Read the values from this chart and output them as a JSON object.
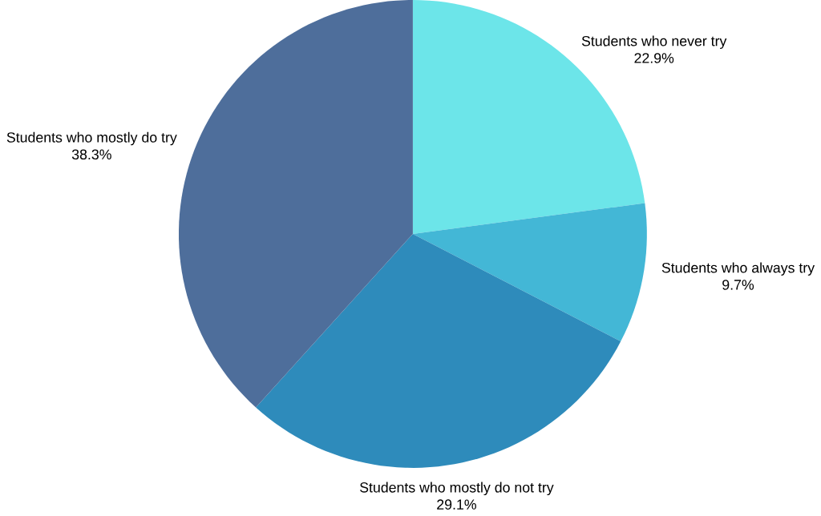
{
  "chart_data": {
    "type": "pie",
    "categories": [
      "Students who never try",
      "Students who always try",
      "Students who mostly do not try",
      "Students who mostly do try"
    ],
    "values": [
      22.9,
      9.7,
      29.1,
      38.3
    ],
    "colors": [
      "#6ce5e9",
      "#43b7d6",
      "#2e8bbb",
      "#4e6e9b"
    ],
    "value_labels": [
      "22.9%",
      "9.7%",
      "29.1%",
      "38.3%"
    ]
  }
}
